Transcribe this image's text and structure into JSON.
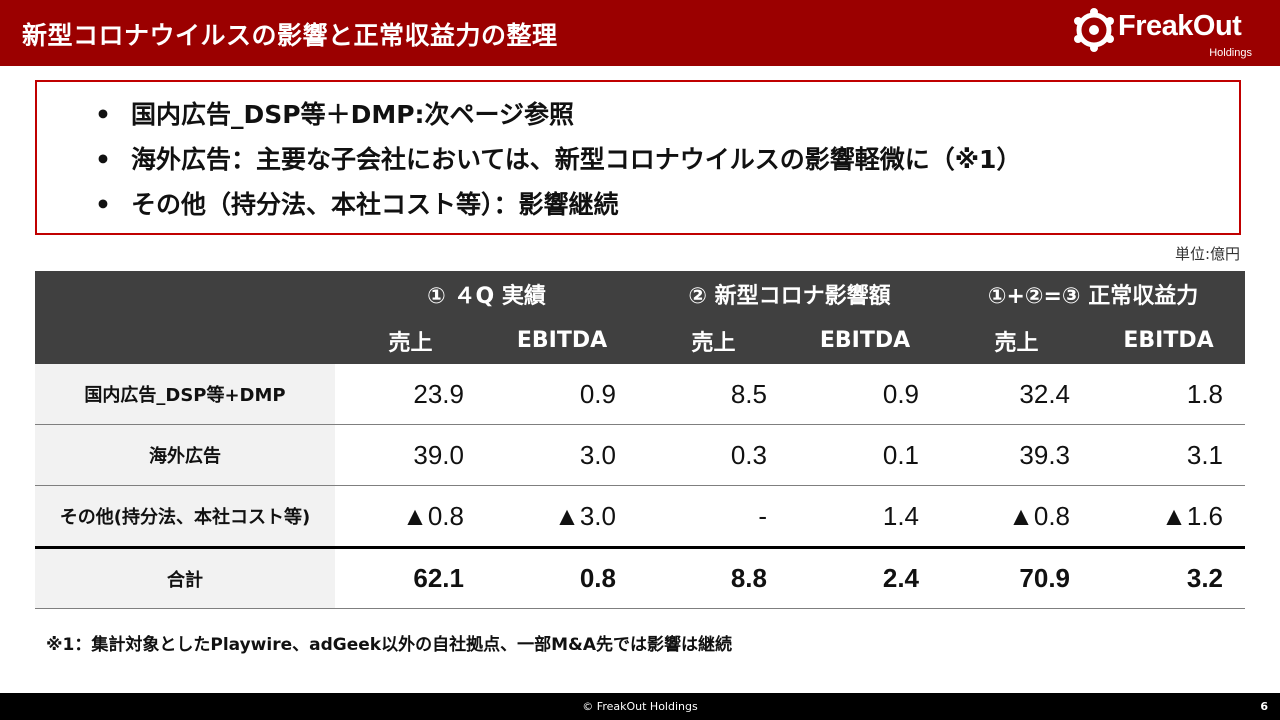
{
  "header": {
    "title": "新型コロナウイルスの影響と正常収益力の整理",
    "logo_name": "FreakOut",
    "logo_sub": "Holdings",
    "bg_color": "#9b0000"
  },
  "bullets": {
    "marker": "•",
    "items": [
      "国内広告_DSP等＋DMP:次ページ参照",
      "海外広告：主要な子会社においては、新型コロナウイルスの影響軽微に（※1）",
      "その他（持分法、本社コスト等）：影響継続"
    ]
  },
  "unit_note": "単位:億円",
  "table": {
    "groups": [
      "① ４Q 実績",
      "② 新型コロナ影響額",
      "①+②=③ 正常収益力"
    ],
    "subheaders": [
      "売上",
      "EBITDA",
      "売上",
      "EBITDA",
      "売上",
      "EBITDA"
    ],
    "rows": [
      {
        "label": "国内広告_DSP等+DMP",
        "values": [
          "23.9",
          "0.9",
          "8.5",
          "0.9",
          "32.4",
          "1.8"
        ]
      },
      {
        "label": "海外広告",
        "values": [
          "39.0",
          "3.0",
          "0.3",
          "0.1",
          "39.3",
          "3.1"
        ]
      },
      {
        "label": "その他(持分法、本社コスト等)",
        "values": [
          "▲0.8",
          "▲3.0",
          "-",
          "1.4",
          "▲0.8",
          "▲1.6"
        ]
      }
    ],
    "total": {
      "label": "合計",
      "values": [
        "62.1",
        "0.8",
        "8.8",
        "2.4",
        "70.9",
        "3.2"
      ]
    }
  },
  "footnote": "※1：集計対象としたPlaywire、adGeek以外の自社拠点、一部M&A先では影響は継続",
  "footer": {
    "copyright": "© FreakOut Holdings",
    "page_number": "6"
  }
}
